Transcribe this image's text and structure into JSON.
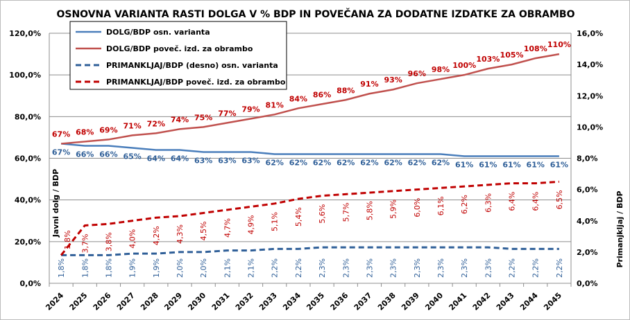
{
  "chart_data": {
    "type": "line",
    "title": "OSNOVNA VARIANTA RASTI DOLGA V % BDP IN POVEČANA ZA DODATNE IZDATKE ZA OBRAMBO",
    "ylabel": "Javni dolg / BDP",
    "y2label": "Primanjkljaj / BDP",
    "ylim": [
      0,
      120
    ],
    "y2lim": [
      0,
      16
    ],
    "yticks": [
      "0,0%",
      "20,0%",
      "40,0%",
      "60,0%",
      "80,0%",
      "100,0%",
      "120,0%"
    ],
    "y2ticks": [
      "0,0%",
      "2,0%",
      "4,0%",
      "6,0%",
      "8,0%",
      "10,0%",
      "12,0%",
      "14,0%",
      "16,0%"
    ],
    "grid": true,
    "legend_position": "top-left",
    "categories": [
      "2024",
      "2025",
      "2026",
      "2027",
      "2028",
      "2029",
      "2030",
      "2031",
      "2032",
      "2033",
      "2034",
      "2035",
      "2036",
      "2037",
      "2038",
      "2039",
      "2040",
      "2041",
      "2042",
      "2043",
      "2044",
      "2045"
    ],
    "series": [
      {
        "name": "DOLG/BDP osn. varianta",
        "axis": "left",
        "style": "solid",
        "color": "#4a7ebb",
        "values": [
          67,
          66,
          66,
          65,
          64,
          64,
          63,
          63,
          63,
          62,
          62,
          62,
          62,
          62,
          62,
          62,
          62,
          61,
          61,
          61,
          61,
          61
        ],
        "labels": [
          "67%",
          "66%",
          "66%",
          "65%",
          "64%",
          "64%",
          "63%",
          "63%",
          "63%",
          "62%",
          "62%",
          "62%",
          "62%",
          "62%",
          "62%",
          "62%",
          "62%",
          "61%",
          "61%",
          "61%",
          "61%",
          "61%"
        ]
      },
      {
        "name": "DOLG/BDP poveč. izd. za obrambo",
        "axis": "left",
        "style": "solid",
        "color": "#c0504d",
        "values": [
          67,
          68,
          69,
          71,
          72,
          74,
          75,
          77,
          79,
          81,
          84,
          86,
          88,
          91,
          93,
          96,
          98,
          100,
          103,
          105,
          108,
          110
        ],
        "labels": [
          "67%",
          "68%",
          "69%",
          "71%",
          "72%",
          "74%",
          "75%",
          "77%",
          "79%",
          "81%",
          "84%",
          "86%",
          "88%",
          "91%",
          "93%",
          "96%",
          "98%",
          "100%",
          "103%",
          "105%",
          "108%",
          "110%"
        ]
      },
      {
        "name": "PRIMANKLJAJ/BDP (desno) osn. varianta",
        "axis": "right",
        "style": "dashed",
        "color": "#2f5f98",
        "values": [
          1.8,
          1.8,
          1.8,
          1.9,
          1.9,
          2.0,
          2.0,
          2.1,
          2.1,
          2.2,
          2.2,
          2.3,
          2.3,
          2.3,
          2.3,
          2.3,
          2.3,
          2.3,
          2.3,
          2.2,
          2.2,
          2.2
        ],
        "labels": [
          "1,8%",
          "1,8%",
          "1,8%",
          "1,9%",
          "1,9%",
          "2,0%",
          "2,0%",
          "2,1%",
          "2,1%",
          "2,2%",
          "2,2%",
          "2,3%",
          "2,3%",
          "2,3%",
          "2,3%",
          "2,3%",
          "2,3%",
          "2,3%",
          "2,3%",
          "2,2%",
          "2,2%",
          "2,2%"
        ]
      },
      {
        "name": "PRIMANKLJAJ/BDP poveč. izd. za obrambo",
        "axis": "right",
        "style": "dashed",
        "color": "#c00000",
        "values": [
          1.8,
          3.7,
          3.8,
          4.0,
          4.2,
          4.3,
          4.5,
          4.7,
          4.9,
          5.1,
          5.4,
          5.6,
          5.7,
          5.8,
          5.9,
          6.0,
          6.1,
          6.2,
          6.3,
          6.4,
          6.4,
          6.5
        ],
        "labels": [
          "1,8%",
          "3,7%",
          "3,8%",
          "4,0%",
          "4,2%",
          "4,3%",
          "4,5%",
          "4,7%",
          "4,9%",
          "5,1%",
          "5,4%",
          "5,6%",
          "5,7%",
          "5,8%",
          "5,9%",
          "6,0%",
          "6,1%",
          "6,2%",
          "6,3%",
          "6,4%",
          "6,4%",
          "6,5%"
        ]
      }
    ]
  }
}
